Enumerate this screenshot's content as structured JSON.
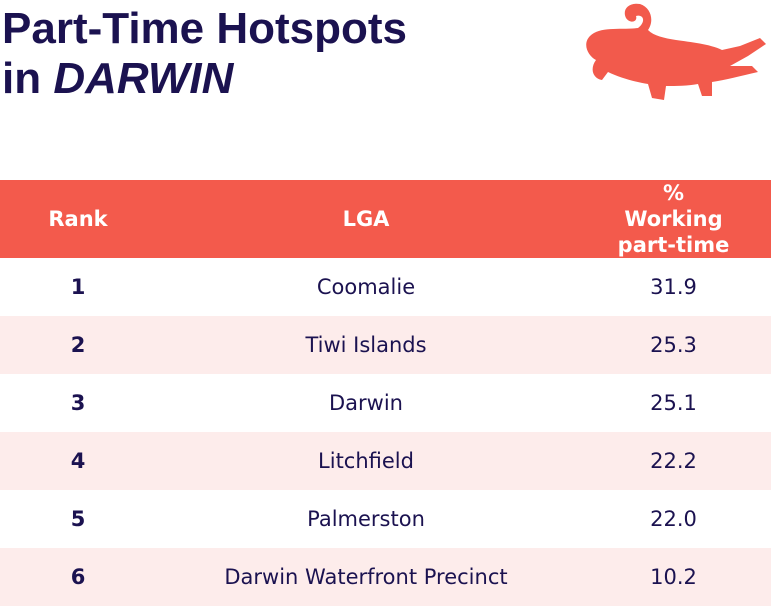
{
  "header": {
    "title_line1": "Part-Time Hotspots",
    "title_prefix": "in",
    "title_emphasis": "DARWIN"
  },
  "table": {
    "columns": [
      "Rank",
      "LGA",
      "% Working part-time"
    ],
    "rows": [
      [
        "1",
        "Coomalie",
        "31.9"
      ],
      [
        "2",
        "Tiwi Islands",
        "25.3"
      ],
      [
        "3",
        "Darwin",
        "25.1"
      ],
      [
        "4",
        "Litchfield",
        "22.2"
      ],
      [
        "5",
        "Palmerston",
        "22.0"
      ],
      [
        "6",
        "Darwin Waterfront Precinct",
        "10.2"
      ]
    ]
  }
}
